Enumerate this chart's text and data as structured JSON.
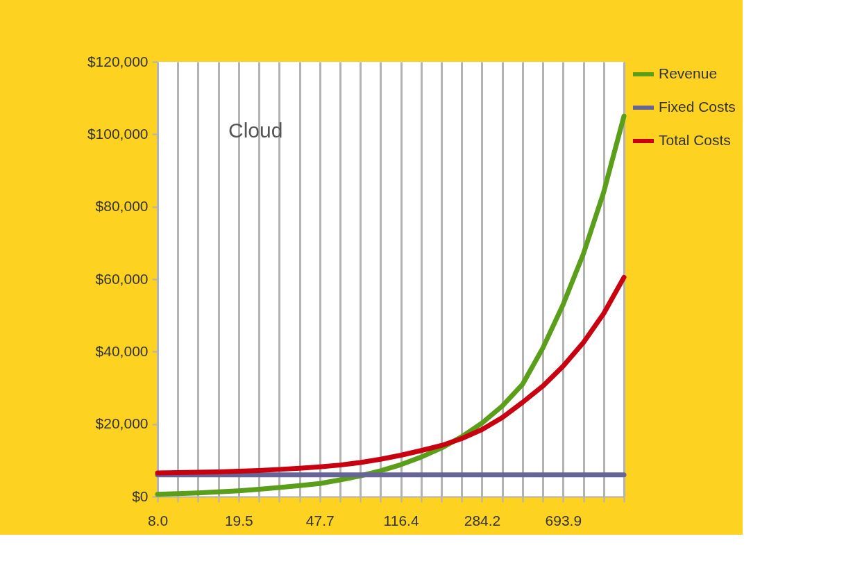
{
  "chart_data": {
    "type": "line",
    "categories": [
      "8.0",
      null,
      null,
      null,
      "19.5",
      null,
      null,
      null,
      "47.7",
      null,
      null,
      null,
      "116.4",
      null,
      null,
      null,
      "284.2",
      null,
      null,
      null,
      "693.9",
      null,
      null,
      null
    ],
    "series": [
      {
        "name": "Revenue",
        "color": "#5a9e1a",
        "values": [
          600,
          800,
          1000,
          1300,
          1600,
          2000,
          2500,
          3000,
          3600,
          4600,
          5700,
          7100,
          8800,
          10900,
          13400,
          16500,
          20300,
          25000,
          31000,
          41000,
          53000,
          67000,
          84000,
          105000
        ]
      },
      {
        "name": "Fixed Costs",
        "color": "#676498",
        "values": [
          6000,
          6000,
          6000,
          6000,
          6000,
          6000,
          6000,
          6000,
          6000,
          6000,
          6000,
          6000,
          6000,
          6000,
          6000,
          6000,
          6000,
          6000,
          6000,
          6000,
          6000,
          6000,
          6000,
          6000
        ]
      },
      {
        "name": "Total Costs",
        "color": "#c8000f",
        "values": [
          6500,
          6600,
          6700,
          6800,
          7000,
          7200,
          7500,
          7800,
          8200,
          8700,
          9400,
          10300,
          11400,
          12700,
          14100,
          16000,
          18500,
          21800,
          26000,
          30500,
          36000,
          42500,
          50500,
          60500
        ]
      }
    ],
    "ylim": [
      0,
      120000
    ],
    "yticks": [
      {
        "value": 0,
        "label": "$0"
      },
      {
        "value": 20000,
        "label": "$20,000"
      },
      {
        "value": 40000,
        "label": "$40,000"
      },
      {
        "value": 60000,
        "label": "$60,000"
      },
      {
        "value": 80000,
        "label": "$80,000"
      },
      {
        "value": 100000,
        "label": "$100,000"
      },
      {
        "value": 120000,
        "label": "$120,000"
      }
    ],
    "annotations": [
      "Cloud"
    ],
    "grid": "x",
    "legend": "right",
    "marker": "none",
    "line_style": "solid"
  }
}
